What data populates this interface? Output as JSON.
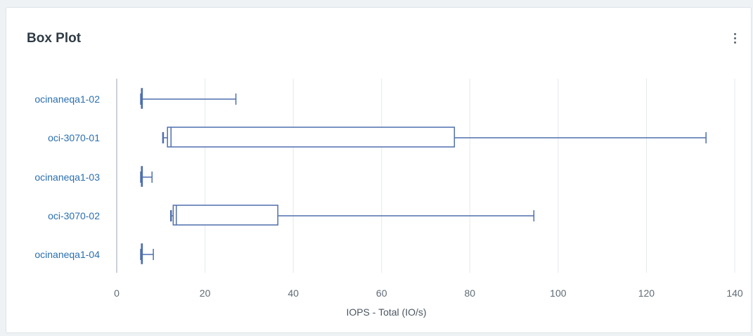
{
  "card": {
    "title": "Box Plot",
    "menu_icon": "kebab-menu-icon"
  },
  "colors": {
    "box": "#4f6fad",
    "grid": "#e5e8eb",
    "axis": "#9aa3ab",
    "category_label": "#2a6fb0"
  },
  "chart_data": {
    "type": "box",
    "orientation": "horizontal",
    "title": "Box Plot",
    "xlabel": "IOPS - Total (IO/s)",
    "ylabel": "",
    "xlim": [
      0,
      140
    ],
    "xticks": [
      0,
      20,
      40,
      60,
      80,
      100,
      120,
      140
    ],
    "grid": true,
    "categories": [
      "ocinaneqa1-02",
      "oci-3070-01",
      "ocinaneqa1-03",
      "oci-3070-02",
      "ocinaneqa1-04"
    ],
    "boxes": [
      {
        "name": "ocinaneqa1-02",
        "min": 5.5,
        "q1": 5.6,
        "median": 5.7,
        "q3": 5.8,
        "max": 27
      },
      {
        "name": "oci-3070-01",
        "min": 10.5,
        "q1": 11.5,
        "median": 12.3,
        "q3": 76.5,
        "max": 133.5
      },
      {
        "name": "ocinaneqa1-03",
        "min": 5.5,
        "q1": 5.6,
        "median": 5.7,
        "q3": 5.8,
        "max": 8
      },
      {
        "name": "oci-3070-02",
        "min": 12.3,
        "q1": 12.8,
        "median": 13.5,
        "q3": 36.5,
        "max": 94.5
      },
      {
        "name": "ocinaneqa1-04",
        "min": 5.5,
        "q1": 5.6,
        "median": 5.7,
        "q3": 5.8,
        "max": 8.3
      }
    ]
  }
}
